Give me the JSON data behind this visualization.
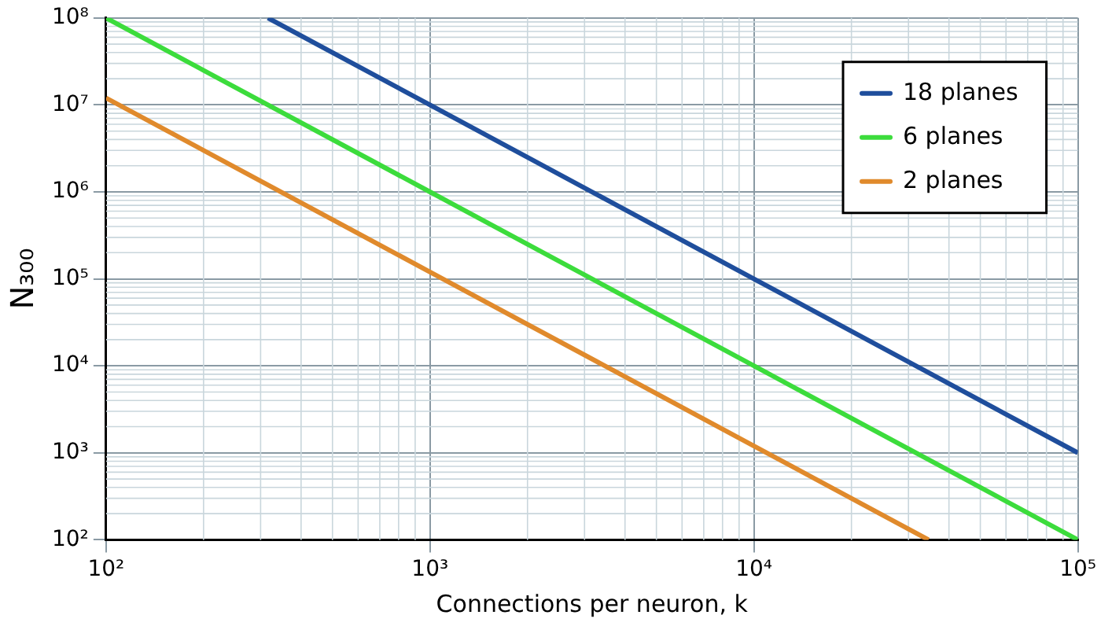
{
  "chart_data": {
    "type": "line",
    "xlabel": "Connections per neuron, k",
    "ylabel": "N₃₀₀",
    "log": "xy",
    "grid": true,
    "legend": "top right",
    "line_style": "solid",
    "marker": "none",
    "xlim": [
      100,
      100000
    ],
    "ylim": [
      100,
      100000000
    ],
    "xticks": [
      {
        "value": 100,
        "label": "10²"
      },
      {
        "value": 1000,
        "label": "10³"
      },
      {
        "value": 10000,
        "label": "10⁴"
      },
      {
        "value": 100000,
        "label": "10⁵"
      }
    ],
    "yticks": [
      {
        "value": 100,
        "label": "10²"
      },
      {
        "value": 1000,
        "label": "10³"
      },
      {
        "value": 10000,
        "label": "10⁴"
      },
      {
        "value": 100000,
        "label": "10⁵"
      },
      {
        "value": 1000000,
        "label": "10⁶"
      },
      {
        "value": 10000000,
        "label": "10⁷"
      },
      {
        "value": 100000000,
        "label": "10⁸"
      }
    ],
    "series": [
      {
        "name": "18 planes",
        "color": "#1f4e9c",
        "x": [
          316,
          1000,
          10000,
          100000
        ],
        "values": [
          100000000,
          10000000,
          100000,
          1000
        ]
      },
      {
        "name": "6 planes",
        "color": "#3cdc3c",
        "x": [
          100,
          1000,
          10000,
          100000
        ],
        "values": [
          100000000,
          1000000,
          10000,
          100
        ]
      },
      {
        "name": "2 planes",
        "color": "#e08a2c",
        "x": [
          100,
          1000,
          10000,
          34600
        ],
        "values": [
          12000000,
          120000,
          1200,
          100
        ]
      }
    ]
  }
}
